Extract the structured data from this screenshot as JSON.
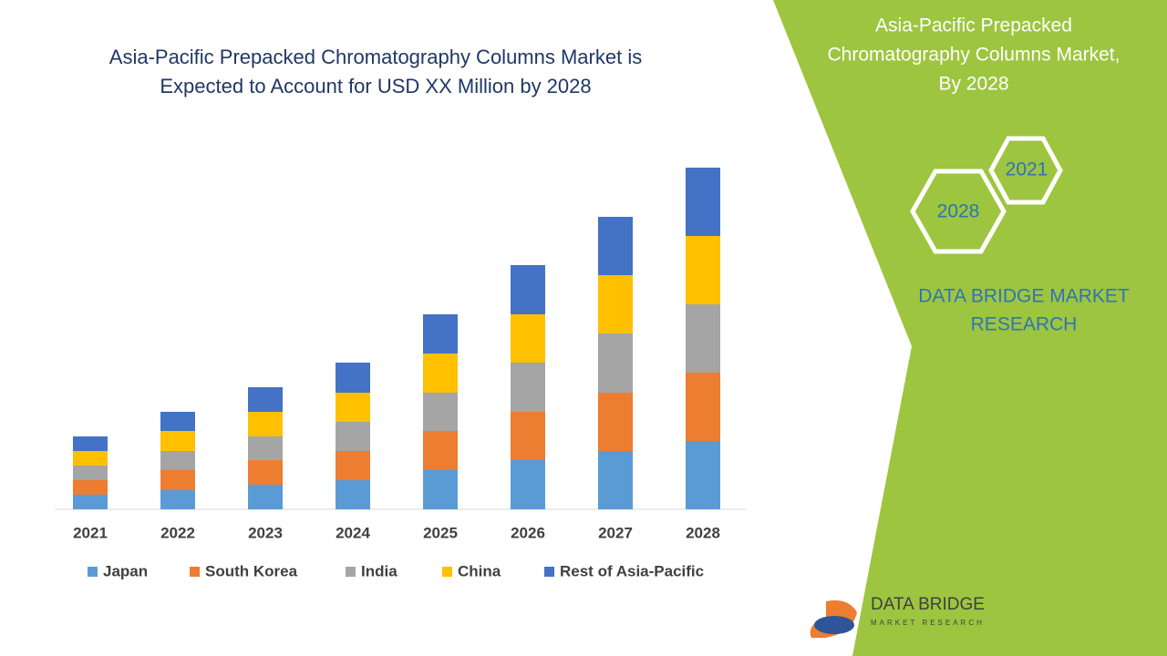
{
  "chart_data": {
    "type": "stacked_bar",
    "title": [
      "Asia-Pacific Prepacked Chromatography Columns Market is",
      "Expected to Account for USD XX Million by 2028"
    ],
    "categories": [
      "2021",
      "2022",
      "2023",
      "2024",
      "2025",
      "2026",
      "2027",
      "2028"
    ],
    "series": [
      {
        "name": "Japan",
        "color": "#5b9bd5",
        "values": [
          16,
          21,
          27,
          32,
          43,
          54,
          64,
          75
        ]
      },
      {
        "name": "South Korea",
        "color": "#ed7d31",
        "values": [
          16,
          22,
          27,
          32,
          43,
          53,
          64,
          75
        ]
      },
      {
        "name": "India",
        "color": "#a5a5a5",
        "values": [
          16,
          21,
          26,
          32,
          42,
          54,
          65,
          75
        ]
      },
      {
        "name": "China",
        "color": "#ffc000",
        "values": [
          16,
          22,
          27,
          32,
          43,
          53,
          64,
          75
        ]
      },
      {
        "name": "Rest of Asia-Pacific",
        "color": "#4472c4",
        "values": [
          16,
          21,
          27,
          33,
          43,
          54,
          64,
          75
        ]
      }
    ],
    "ylim": [
      0,
      400
    ]
  },
  "panel": {
    "title": [
      "Asia-Pacific Prepacked",
      "Chromatography Columns Market,",
      "By 2028"
    ],
    "hex_years": [
      "2021",
      "2028"
    ],
    "brand": [
      "DATA BRIDGE MARKET",
      "RESEARCH"
    ],
    "logo": [
      "DATA BRIDGE",
      "MARKET RESEARCH"
    ]
  }
}
